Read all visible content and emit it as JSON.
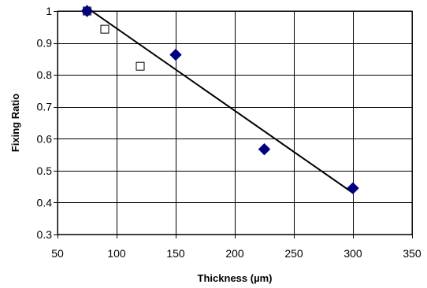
{
  "chart_data": {
    "type": "scatter",
    "title": "",
    "xlabel": "Thickness (µm)",
    "ylabel": "Fixing Ratio",
    "xlim": [
      50,
      350
    ],
    "ylim": [
      0.3,
      1.0
    ],
    "x_ticks": [
      50,
      100,
      150,
      200,
      250,
      300,
      350
    ],
    "y_ticks": [
      0.3,
      0.4,
      0.5,
      0.6,
      0.7,
      0.8,
      0.9,
      1.0
    ],
    "x_tick_labels": [
      "50",
      "100",
      "150",
      "200",
      "250",
      "300",
      "350"
    ],
    "y_tick_labels": [
      "0.3",
      "0.4",
      "0.5",
      "0.6",
      "0.7",
      "0.8",
      "0.9",
      "1"
    ],
    "grid": true,
    "legend": "none",
    "series": [
      {
        "marker": "diamond",
        "color": "#000080",
        "filled": true,
        "points": [
          {
            "x": 75,
            "y": 1.0
          },
          {
            "x": 150,
            "y": 0.863
          },
          {
            "x": 225,
            "y": 0.567
          },
          {
            "x": 300,
            "y": 0.445
          }
        ]
      },
      {
        "marker": "square",
        "color": "#000000",
        "filled": false,
        "points": [
          {
            "x": 75,
            "y": 1.0
          },
          {
            "x": 90,
            "y": 0.943
          },
          {
            "x": 120,
            "y": 0.827
          }
        ]
      }
    ],
    "trendline": {
      "type": "linear",
      "color": "#000000",
      "points": [
        {
          "x": 75,
          "y": 1.01
        },
        {
          "x": 300,
          "y": 0.43
        }
      ]
    }
  }
}
